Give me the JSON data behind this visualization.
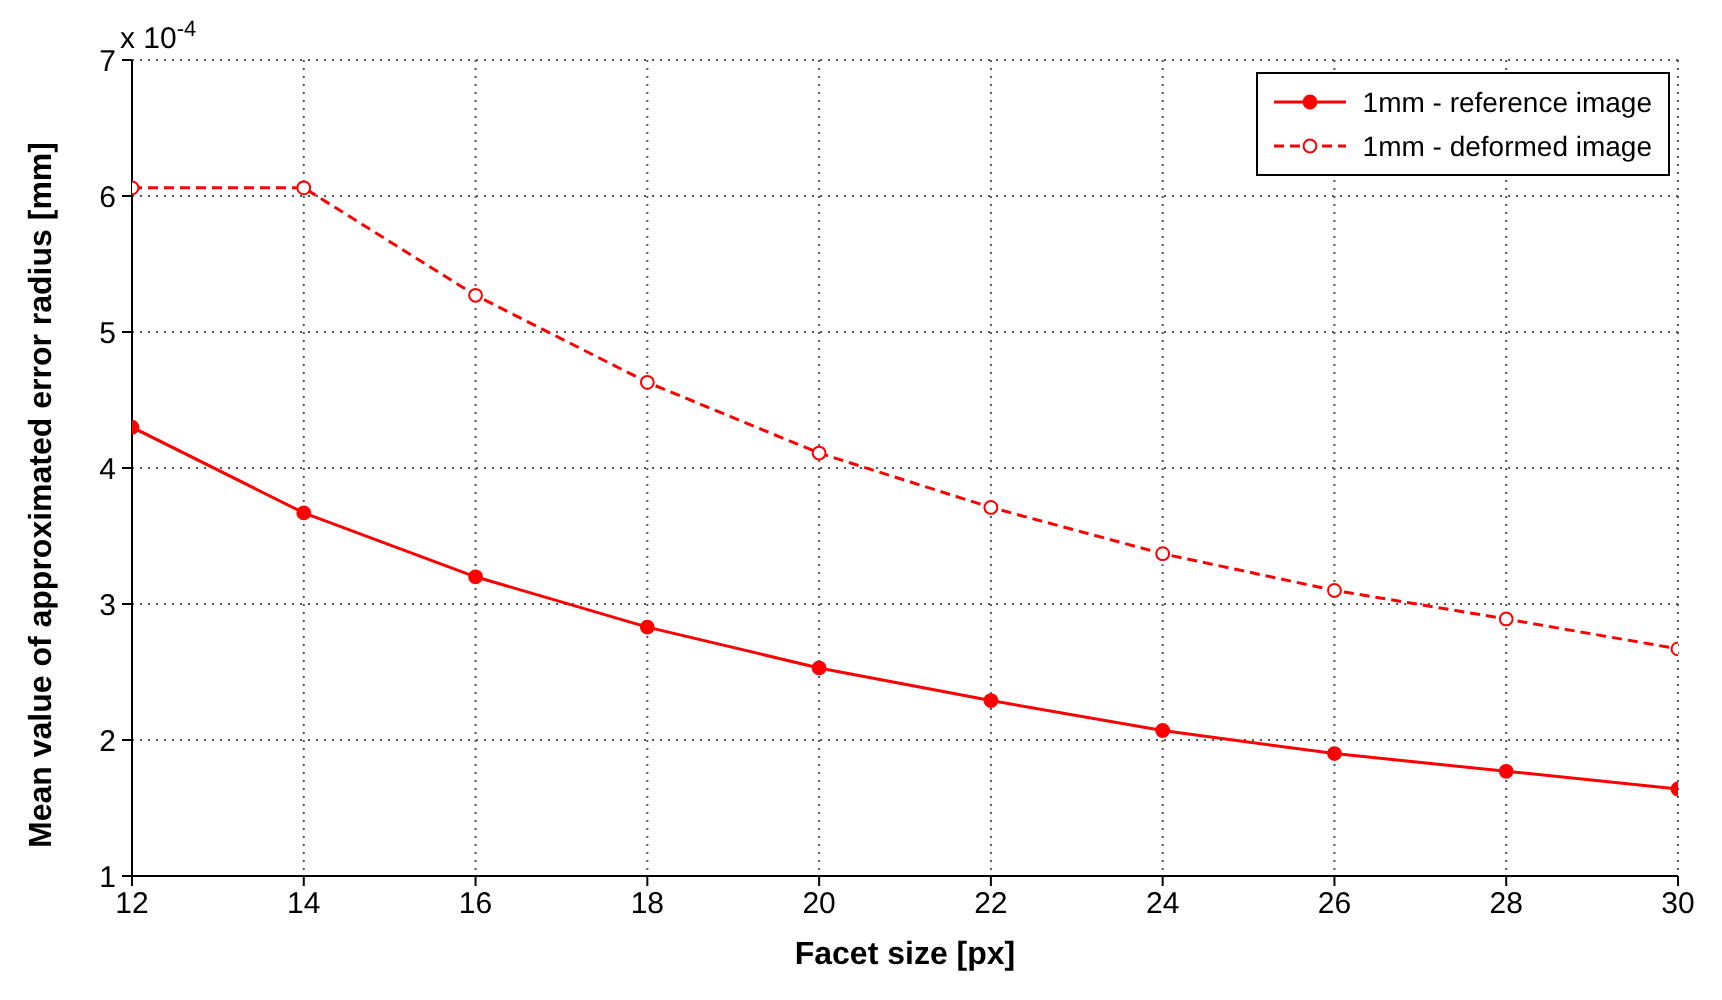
{
  "chart_data": {
    "type": "line",
    "xlabel": "Facet size [px]",
    "ylabel": "Mean value of approximated error radius [mm]",
    "annotations": [
      "x 10$^{-4}$"
    ],
    "x": [
      12,
      14,
      16,
      18,
      20,
      22,
      24,
      26,
      28,
      30
    ],
    "series": [
      {
        "name": "1mm - reference image",
        "color": "#ff0000",
        "line_style": "solid",
        "values": [
          4.3,
          3.67,
          3.2,
          2.83,
          2.53,
          2.29,
          2.07,
          1.9,
          1.77,
          1.64
        ]
      },
      {
        "name": "1mm - deformed image",
        "color": "#ff0000",
        "line_style": "dashed",
        "values": [
          6.06,
          6.06,
          5.27,
          4.63,
          4.11,
          3.71,
          3.37,
          3.1,
          2.89,
          2.67
        ]
      }
    ],
    "xlim": [
      12,
      30
    ],
    "xticks": [
      12,
      14,
      16,
      18,
      20,
      22,
      24,
      26,
      28,
      30
    ],
    "ylim": [
      1,
      7
    ],
    "yticks": [
      1,
      2,
      3,
      4,
      5,
      6,
      7
    ],
    "grid": true,
    "legend": "top right",
    "marker": "circle"
  }
}
